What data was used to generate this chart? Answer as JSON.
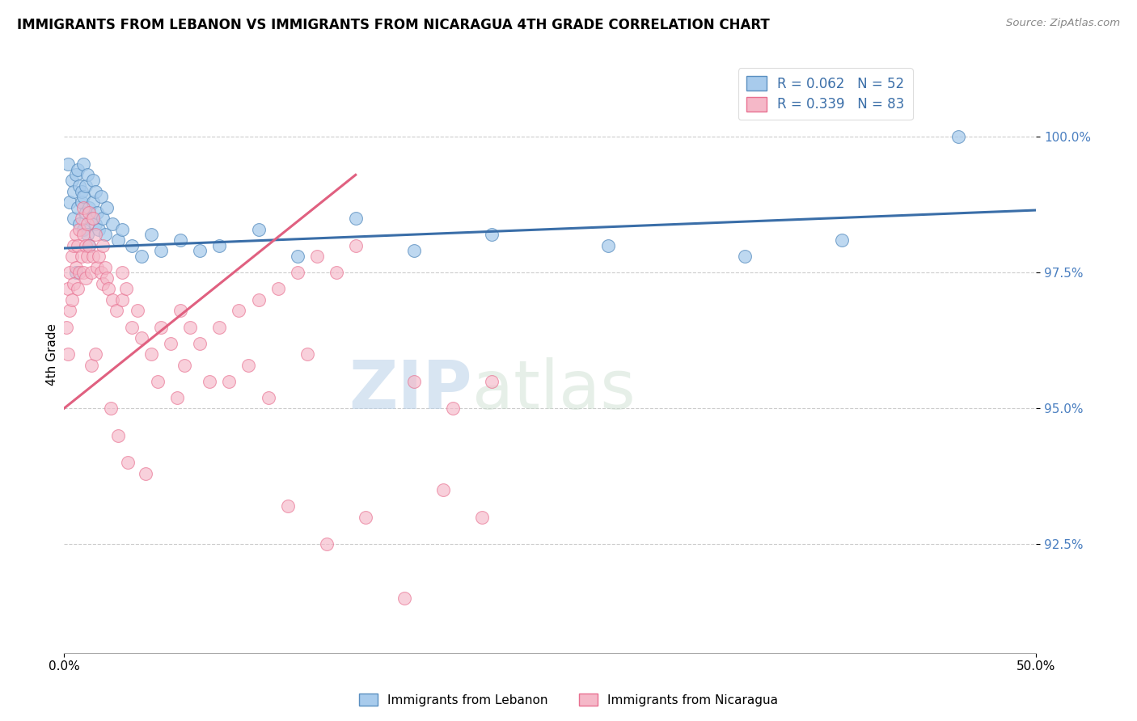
{
  "title": "IMMIGRANTS FROM LEBANON VS IMMIGRANTS FROM NICARAGUA 4TH GRADE CORRELATION CHART",
  "source": "Source: ZipAtlas.com",
  "xlabel_blue": "Immigrants from Lebanon",
  "xlabel_pink": "Immigrants from Nicaragua",
  "ylabel": "4th Grade",
  "xlim": [
    0.0,
    50.0
  ],
  "ylim": [
    90.5,
    101.5
  ],
  "yticks": [
    92.5,
    95.0,
    97.5,
    100.0
  ],
  "ytick_labels": [
    "92.5%",
    "95.0%",
    "97.5%",
    "100.0%"
  ],
  "xticks": [
    0.0,
    50.0
  ],
  "xtick_labels": [
    "0.0%",
    "50.0%"
  ],
  "blue_color": "#A8CBEC",
  "pink_color": "#F5B8C8",
  "blue_edge_color": "#5A8FC0",
  "pink_edge_color": "#E87090",
  "blue_line_color": "#3A6EA8",
  "pink_line_color": "#E06080",
  "tick_color": "#4A7FC0",
  "legend_r_blue": "R = 0.062",
  "legend_n_blue": "N = 52",
  "legend_r_pink": "R = 0.339",
  "legend_n_pink": "N = 83",
  "watermark_zip": "ZIP",
  "watermark_atlas": "atlas",
  "blue_trend_x0": 0.0,
  "blue_trend_y0": 97.95,
  "blue_trend_x1": 50.0,
  "blue_trend_y1": 98.65,
  "pink_trend_x0": 0.0,
  "pink_trend_y0": 95.0,
  "pink_trend_x1": 15.0,
  "pink_trend_y1": 99.3,
  "blue_x": [
    0.2,
    0.3,
    0.4,
    0.5,
    0.5,
    0.6,
    0.7,
    0.7,
    0.8,
    0.8,
    0.9,
    0.9,
    1.0,
    1.0,
    1.0,
    1.1,
    1.1,
    1.2,
    1.2,
    1.3,
    1.3,
    1.4,
    1.5,
    1.5,
    1.6,
    1.6,
    1.7,
    1.8,
    1.9,
    2.0,
    2.1,
    2.2,
    2.5,
    2.8,
    3.0,
    3.5,
    4.0,
    4.5,
    5.0,
    6.0,
    7.0,
    8.0,
    10.0,
    12.0,
    15.0,
    18.0,
    22.0,
    28.0,
    35.0,
    40.0,
    46.0,
    0.6
  ],
  "blue_y": [
    99.5,
    98.8,
    99.2,
    98.5,
    99.0,
    99.3,
    98.7,
    99.4,
    99.1,
    98.4,
    98.8,
    99.0,
    99.5,
    98.9,
    98.3,
    98.6,
    99.1,
    98.2,
    99.3,
    98.7,
    98.0,
    98.5,
    98.8,
    99.2,
    98.4,
    99.0,
    98.6,
    98.3,
    98.9,
    98.5,
    98.2,
    98.7,
    98.4,
    98.1,
    98.3,
    98.0,
    97.8,
    98.2,
    97.9,
    98.1,
    97.9,
    98.0,
    98.3,
    97.8,
    98.5,
    97.9,
    98.2,
    98.0,
    97.8,
    98.1,
    100.0,
    97.5
  ],
  "pink_x": [
    0.1,
    0.2,
    0.2,
    0.3,
    0.3,
    0.4,
    0.4,
    0.5,
    0.5,
    0.6,
    0.6,
    0.7,
    0.7,
    0.8,
    0.8,
    0.9,
    0.9,
    1.0,
    1.0,
    1.0,
    1.1,
    1.1,
    1.2,
    1.2,
    1.3,
    1.3,
    1.4,
    1.5,
    1.5,
    1.6,
    1.7,
    1.8,
    1.9,
    2.0,
    2.0,
    2.1,
    2.2,
    2.3,
    2.5,
    2.7,
    3.0,
    3.0,
    3.2,
    3.5,
    3.8,
    4.0,
    4.5,
    5.0,
    5.5,
    6.0,
    6.5,
    7.0,
    8.0,
    9.0,
    10.0,
    11.0,
    12.0,
    13.0,
    14.0,
    15.0,
    18.0,
    20.0,
    22.0,
    2.8,
    3.3,
    4.2,
    5.8,
    7.5,
    9.5,
    11.5,
    13.5,
    15.5,
    17.5,
    19.5,
    21.5,
    4.8,
    6.2,
    8.5,
    10.5,
    12.5,
    1.4,
    1.6,
    2.4
  ],
  "pink_y": [
    96.5,
    97.2,
    96.0,
    97.5,
    96.8,
    97.8,
    97.0,
    98.0,
    97.3,
    98.2,
    97.6,
    98.0,
    97.2,
    98.3,
    97.5,
    98.5,
    97.8,
    98.7,
    98.2,
    97.5,
    98.0,
    97.4,
    98.4,
    97.8,
    98.6,
    98.0,
    97.5,
    98.5,
    97.8,
    98.2,
    97.6,
    97.8,
    97.5,
    98.0,
    97.3,
    97.6,
    97.4,
    97.2,
    97.0,
    96.8,
    97.5,
    97.0,
    97.2,
    96.5,
    96.8,
    96.3,
    96.0,
    96.5,
    96.2,
    96.8,
    96.5,
    96.2,
    96.5,
    96.8,
    97.0,
    97.2,
    97.5,
    97.8,
    97.5,
    98.0,
    95.5,
    95.0,
    95.5,
    94.5,
    94.0,
    93.8,
    95.2,
    95.5,
    95.8,
    93.2,
    92.5,
    93.0,
    91.5,
    93.5,
    93.0,
    95.5,
    95.8,
    95.5,
    95.2,
    96.0,
    95.8,
    96.0,
    95.0
  ]
}
